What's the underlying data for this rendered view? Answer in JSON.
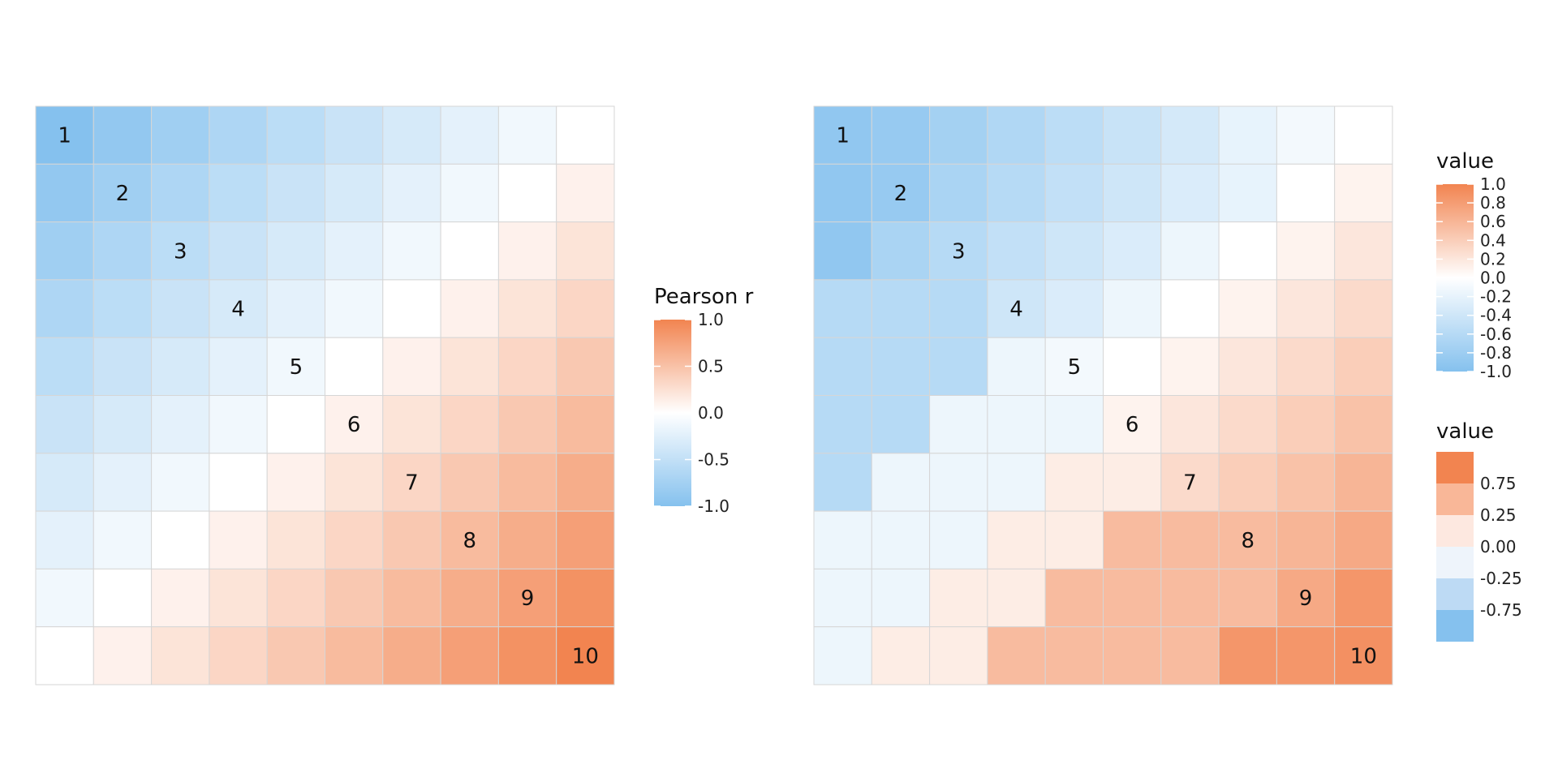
{
  "chart_data": [
    {
      "type": "heatmap",
      "rows": 10,
      "cols": 10,
      "diagonal_labels": [
        "1",
        "2",
        "3",
        "4",
        "5",
        "6",
        "7",
        "8",
        "9",
        "10"
      ],
      "value_rule": "r = (i + j - 11) / 9 for row i, column j (1-indexed)",
      "values": [
        [
          -1.0,
          -0.889,
          -0.778,
          -0.667,
          -0.556,
          -0.444,
          -0.333,
          -0.222,
          -0.111,
          0.0
        ],
        [
          -0.889,
          -0.778,
          -0.667,
          -0.556,
          -0.444,
          -0.333,
          -0.222,
          -0.111,
          0.0,
          0.111
        ],
        [
          -0.778,
          -0.667,
          -0.556,
          -0.444,
          -0.333,
          -0.222,
          -0.111,
          0.0,
          0.111,
          0.222
        ],
        [
          -0.667,
          -0.556,
          -0.444,
          -0.333,
          -0.222,
          -0.111,
          0.0,
          0.111,
          0.222,
          0.333
        ],
        [
          -0.556,
          -0.444,
          -0.333,
          -0.222,
          -0.111,
          0.0,
          0.111,
          0.222,
          0.333,
          0.444
        ],
        [
          -0.444,
          -0.333,
          -0.222,
          -0.111,
          0.0,
          0.111,
          0.222,
          0.333,
          0.444,
          0.556
        ],
        [
          -0.333,
          -0.222,
          -0.111,
          0.0,
          0.111,
          0.222,
          0.333,
          0.444,
          0.556,
          0.667
        ],
        [
          -0.222,
          -0.111,
          0.0,
          0.111,
          0.222,
          0.333,
          0.444,
          0.556,
          0.667,
          0.778
        ],
        [
          -0.111,
          0.0,
          0.111,
          0.222,
          0.333,
          0.444,
          0.556,
          0.667,
          0.778,
          0.889
        ],
        [
          0.0,
          0.111,
          0.222,
          0.333,
          0.444,
          0.556,
          0.667,
          0.778,
          0.889,
          1.0
        ]
      ],
      "legend": {
        "title": "Pearson r",
        "type": "continuous",
        "limits": [
          -1,
          1
        ],
        "ticks": [
          1.0,
          0.5,
          0.0,
          -0.5,
          -1.0
        ],
        "tick_labels": [
          "1.0",
          "0.5",
          "0.0",
          "-0.5",
          "-1.0"
        ]
      },
      "colors": {
        "low": "#85C1EE",
        "mid": "#FFFFFF",
        "high": "#F28450",
        "grid": "#D6D6D6"
      }
    },
    {
      "type": "heatmap",
      "rows": 10,
      "cols": 10,
      "diagonal_labels": [
        "1",
        "2",
        "3",
        "4",
        "5",
        "6",
        "7",
        "8",
        "9",
        "10"
      ],
      "values": [
        [
          -0.9,
          -0.85,
          -0.75,
          -0.65,
          -0.55,
          -0.45,
          -0.35,
          -0.2,
          -0.1,
          0.0
        ],
        [
          -0.9,
          -0.85,
          -0.7,
          -0.6,
          -0.5,
          -0.4,
          -0.3,
          -0.2,
          0.0,
          0.1
        ],
        [
          -0.9,
          -0.7,
          -0.6,
          -0.5,
          -0.4,
          -0.3,
          -0.15,
          0.0,
          0.1,
          0.2
        ],
        [
          -0.6,
          -0.6,
          -0.6,
          -0.4,
          -0.3,
          -0.15,
          0.0,
          0.1,
          0.2,
          0.3
        ],
        [
          -0.6,
          -0.6,
          -0.6,
          -0.15,
          -0.1,
          0.0,
          0.1,
          0.2,
          0.3,
          0.4
        ],
        [
          -0.6,
          -0.6,
          -0.15,
          -0.15,
          -0.15,
          0.1,
          0.2,
          0.3,
          0.4,
          0.5
        ],
        [
          -0.6,
          -0.15,
          -0.15,
          -0.15,
          0.15,
          0.15,
          0.3,
          0.4,
          0.5,
          0.6
        ],
        [
          -0.15,
          -0.15,
          -0.15,
          0.15,
          0.15,
          0.55,
          0.55,
          0.55,
          0.6,
          0.7
        ],
        [
          -0.15,
          -0.15,
          0.15,
          0.15,
          0.55,
          0.55,
          0.55,
          0.55,
          0.7,
          0.85
        ],
        [
          -0.15,
          0.15,
          0.15,
          0.55,
          0.55,
          0.55,
          0.55,
          0.85,
          0.85,
          0.9
        ]
      ],
      "legends": [
        {
          "title": "value",
          "type": "continuous",
          "limits": [
            -1,
            1
          ],
          "ticks": [
            1.0,
            0.8,
            0.6,
            0.4,
            0.2,
            0.0,
            -0.2,
            -0.4,
            -0.6,
            -0.8,
            -1.0
          ],
          "tick_labels": [
            "1.0",
            "0.8",
            "0.6",
            "0.4",
            "0.2",
            "0.0",
            "-0.2",
            "-0.4",
            "-0.6",
            "-0.8",
            "-1.0"
          ]
        },
        {
          "title": "value",
          "type": "binned",
          "bin_colors": [
            "#F28450",
            "#F9B798",
            "#FDE8E0",
            "#EEF4FB",
            "#BDDAF4",
            "#85C1EE"
          ],
          "tick_labels": [
            "0.75",
            "0.25",
            "0.00",
            "-0.25",
            "-0.75"
          ]
        }
      ],
      "colors": {
        "low": "#85C1EE",
        "mid": "#FFFFFF",
        "high": "#F28450",
        "grid": "#D6D6D6"
      }
    }
  ]
}
